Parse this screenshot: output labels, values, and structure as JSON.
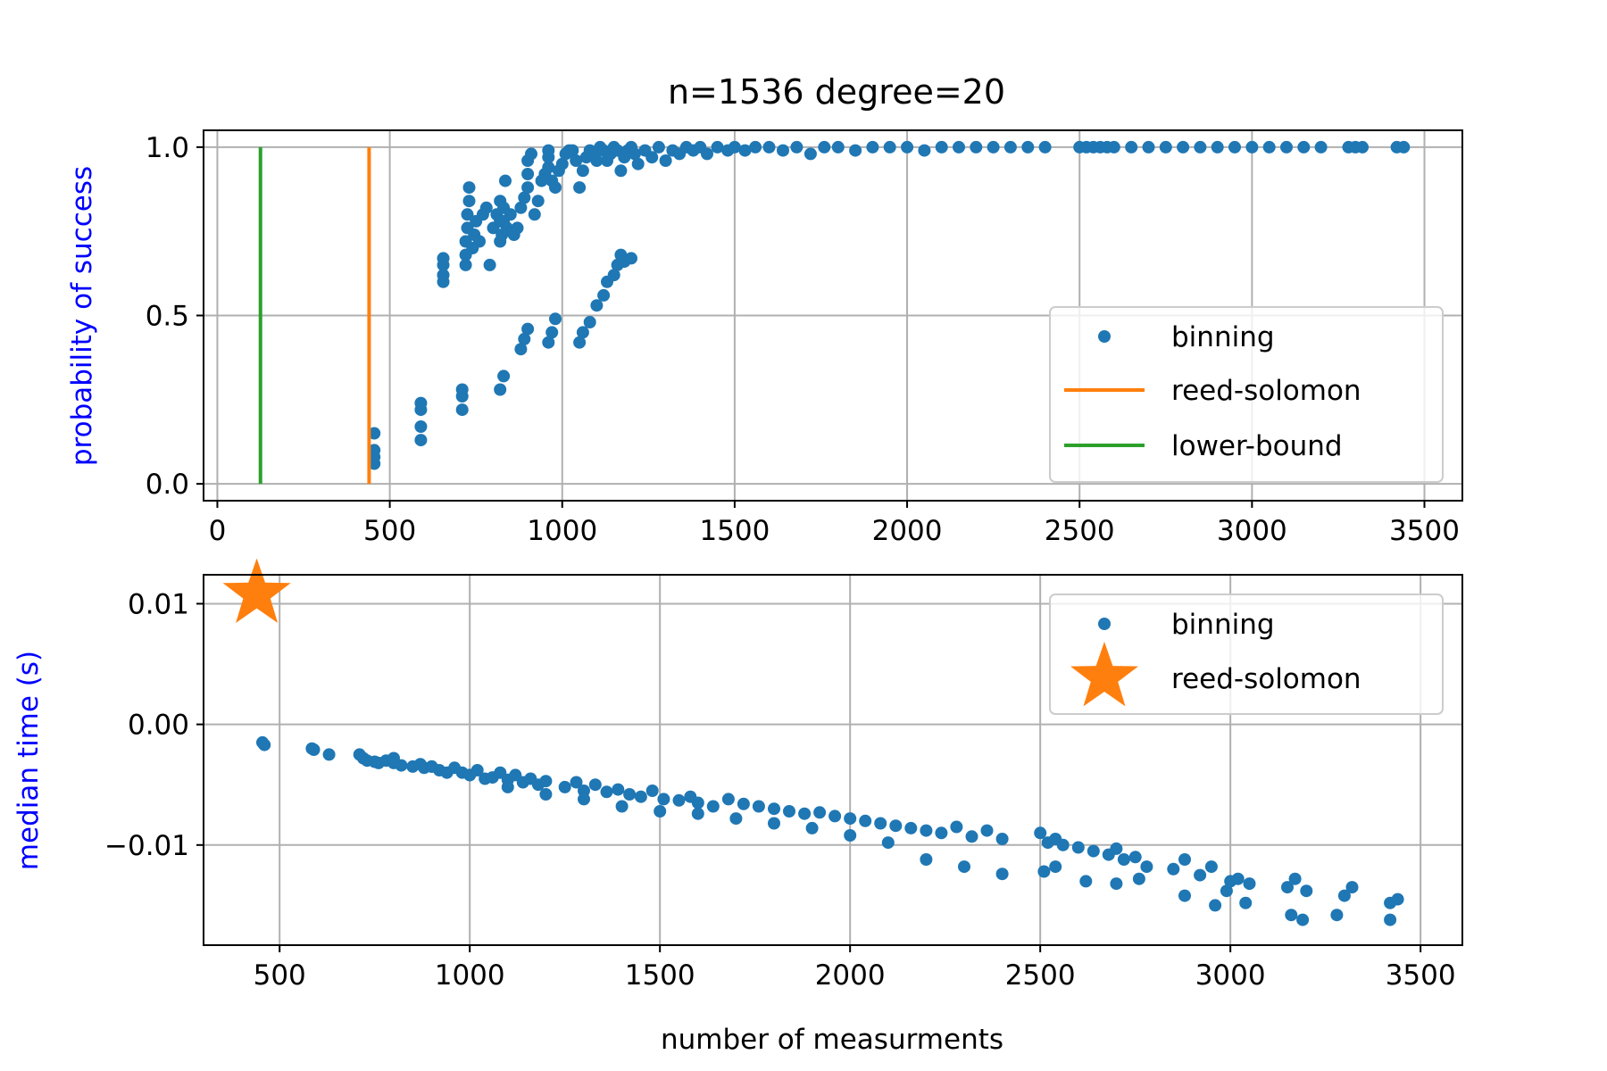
{
  "colors": {
    "binning": "#1f77b4",
    "reed_solomon": "#ff7f0e",
    "lower_bound": "#2ca02c",
    "axis_title": "#0000ff",
    "grid": "#b0b0b0"
  },
  "chart_data": [
    {
      "type": "scatter",
      "title": "n=1536 degree=20",
      "xlabel": "",
      "ylabel": "probability of success",
      "xlim": [
        -40,
        3610
      ],
      "ylim": [
        -0.05,
        1.05
      ],
      "xticks": [
        0,
        500,
        1000,
        1500,
        2000,
        2500,
        3000,
        3500
      ],
      "yticks": [
        0.0,
        0.5,
        1.0
      ],
      "xtick_labels": [
        "0",
        "500",
        "1000",
        "1500",
        "2000",
        "2500",
        "3000",
        "3500"
      ],
      "ytick_labels": [
        "0.0",
        "0.5",
        "1.0"
      ],
      "grid": true,
      "legend_position": "lower-right",
      "series": [
        {
          "name": "binning",
          "kind": "points",
          "marker": "dot",
          "x": [
            455,
            455,
            455,
            455,
            590,
            590,
            590,
            590,
            655,
            655,
            655,
            655,
            710,
            710,
            710,
            720,
            720,
            720,
            725,
            725,
            730,
            730,
            740,
            745,
            750,
            760,
            770,
            780,
            790,
            800,
            810,
            820,
            820,
            820,
            825,
            830,
            830,
            835,
            840,
            850,
            860,
            870,
            880,
            890,
            900,
            900,
            900,
            910,
            920,
            930,
            940,
            950,
            960,
            960,
            960,
            970,
            980,
            990,
            1000,
            1010,
            1020,
            1030,
            1040,
            1050,
            1060,
            1070,
            1080,
            1090,
            1100,
            1110,
            1120,
            1130,
            1140,
            1150,
            1160,
            1170,
            1180,
            1190,
            1200,
            1210,
            1220,
            1240,
            1260,
            1280,
            1300,
            1320,
            1340,
            1360,
            1380,
            1400,
            1420,
            1450,
            1480,
            1500,
            1530,
            1560,
            1600,
            1640,
            1680,
            1720,
            1760,
            1800,
            1850,
            1900,
            1950,
            2000,
            2050,
            2100,
            2150,
            2200,
            2250,
            2300,
            2350,
            2400,
            2500,
            2520,
            2540,
            2560,
            2580,
            2600,
            2650,
            2700,
            2750,
            2800,
            2850,
            2900,
            2950,
            3000,
            3050,
            3100,
            3150,
            3200,
            3280,
            3300,
            3320,
            3420,
            3440,
            820,
            830,
            880,
            890,
            900,
            960,
            970,
            980,
            1050,
            1060,
            1080,
            1100,
            1120,
            1130,
            1150,
            1160,
            1170,
            1180,
            1200
          ],
          "y": [
            0.06,
            0.08,
            0.1,
            0.15,
            0.13,
            0.17,
            0.22,
            0.24,
            0.6,
            0.62,
            0.65,
            0.67,
            0.22,
            0.26,
            0.28,
            0.65,
            0.68,
            0.72,
            0.76,
            0.8,
            0.84,
            0.88,
            0.7,
            0.74,
            0.78,
            0.72,
            0.8,
            0.82,
            0.65,
            0.76,
            0.8,
            0.72,
            0.78,
            0.84,
            0.74,
            0.78,
            0.82,
            0.9,
            0.76,
            0.8,
            0.74,
            0.76,
            0.82,
            0.85,
            0.88,
            0.92,
            0.96,
            0.98,
            0.8,
            0.84,
            0.9,
            0.92,
            0.94,
            0.97,
            0.99,
            0.9,
            0.88,
            0.93,
            0.95,
            0.98,
            0.99,
            0.99,
            0.96,
            0.88,
            0.93,
            0.97,
            0.99,
            0.98,
            0.96,
            1.0,
            0.99,
            0.96,
            0.98,
            1.0,
            0.99,
            0.93,
            0.97,
            0.99,
            1.0,
            0.98,
            0.95,
            0.99,
            0.97,
            1.0,
            0.96,
            0.99,
            0.98,
            1.0,
            0.99,
            1.0,
            0.98,
            1.0,
            0.99,
            1.0,
            0.99,
            1.0,
            1.0,
            0.99,
            1.0,
            0.98,
            1.0,
            1.0,
            0.99,
            1.0,
            1.0,
            1.0,
            0.99,
            1.0,
            1.0,
            1.0,
            1.0,
            1.0,
            1.0,
            1.0,
            1.0,
            1.0,
            1.0,
            1.0,
            1.0,
            1.0,
            1.0,
            1.0,
            1.0,
            1.0,
            1.0,
            1.0,
            1.0,
            1.0,
            1.0,
            1.0,
            1.0,
            1.0,
            1.0,
            1.0,
            1.0,
            1.0,
            1.0,
            0.28,
            0.32,
            0.4,
            0.43,
            0.46,
            0.42,
            0.45,
            0.49,
            0.42,
            0.45,
            0.48,
            0.53,
            0.56,
            0.6,
            0.62,
            0.65,
            0.68,
            0.66,
            0.67
          ]
        },
        {
          "name": "reed-solomon",
          "kind": "vline",
          "x": 440,
          "y_range": [
            0.0,
            1.0
          ]
        },
        {
          "name": "lower-bound",
          "kind": "vline",
          "x": 125,
          "y_range": [
            0.0,
            1.0
          ]
        }
      ]
    },
    {
      "type": "scatter",
      "title": "",
      "xlabel": "number of measurments",
      "ylabel": "median time (s)",
      "xlim": [
        300,
        3610
      ],
      "ylim": [
        -0.0183,
        0.0124
      ],
      "xticks": [
        500,
        1000,
        1500,
        2000,
        2500,
        3000,
        3500
      ],
      "yticks": [
        0.01,
        0.0,
        -0.01
      ],
      "xtick_labels": [
        "500",
        "1000",
        "1500",
        "2000",
        "2500",
        "3000",
        "3500"
      ],
      "ytick_labels": [
        "0.01",
        "0.00",
        "−0.01"
      ],
      "grid": true,
      "legend_position": "upper-right",
      "series": [
        {
          "name": "binning",
          "kind": "points",
          "marker": "dot",
          "x": [
            455,
            460,
            585,
            590,
            630,
            710,
            720,
            730,
            750,
            760,
            780,
            800,
            820,
            850,
            870,
            880,
            900,
            920,
            940,
            960,
            980,
            1000,
            1020,
            1040,
            1060,
            1080,
            1100,
            1120,
            1140,
            1160,
            1180,
            1200,
            1250,
            1280,
            1300,
            1330,
            1360,
            1390,
            1420,
            1450,
            1480,
            1510,
            1550,
            1580,
            1600,
            1640,
            1680,
            1720,
            1760,
            1800,
            1840,
            1880,
            1920,
            1960,
            2000,
            2040,
            2080,
            2120,
            2160,
            2200,
            2240,
            2280,
            2320,
            2360,
            2400,
            2500,
            2520,
            2540,
            2560,
            2600,
            2640,
            2680,
            2700,
            2720,
            2750,
            2780,
            2850,
            2880,
            2920,
            2950,
            3000,
            3020,
            3050,
            3150,
            3170,
            3200,
            3300,
            3320,
            3420,
            3440,
            2510,
            2540,
            2620,
            2700,
            2760,
            2880,
            2960,
            2990,
            3040,
            3160,
            3190,
            3280,
            3420,
            800,
            900,
            1000,
            1100,
            1200,
            1300,
            1400,
            1500,
            1600,
            1700,
            1800,
            1900,
            2000,
            2100,
            2200,
            2300,
            2400
          ],
          "y": [
            -0.0015,
            -0.0017,
            -0.002,
            -0.0021,
            -0.0025,
            -0.0025,
            -0.0028,
            -0.003,
            -0.0031,
            -0.0032,
            -0.003,
            -0.0032,
            -0.0034,
            -0.0035,
            -0.0033,
            -0.0036,
            -0.0035,
            -0.0038,
            -0.004,
            -0.0036,
            -0.004,
            -0.0042,
            -0.0038,
            -0.0045,
            -0.0044,
            -0.004,
            -0.0046,
            -0.0042,
            -0.0048,
            -0.0045,
            -0.005,
            -0.0047,
            -0.0052,
            -0.0048,
            -0.0055,
            -0.005,
            -0.0056,
            -0.0054,
            -0.0058,
            -0.006,
            -0.0055,
            -0.0062,
            -0.0063,
            -0.006,
            -0.0065,
            -0.0068,
            -0.0062,
            -0.0066,
            -0.0068,
            -0.007,
            -0.0072,
            -0.0074,
            -0.0073,
            -0.0076,
            -0.0078,
            -0.008,
            -0.0082,
            -0.0084,
            -0.0086,
            -0.0088,
            -0.009,
            -0.0085,
            -0.0093,
            -0.0088,
            -0.0095,
            -0.009,
            -0.0098,
            -0.0095,
            -0.01,
            -0.0102,
            -0.0105,
            -0.0108,
            -0.0103,
            -0.0112,
            -0.011,
            -0.0118,
            -0.012,
            -0.0112,
            -0.0125,
            -0.0118,
            -0.013,
            -0.0128,
            -0.0132,
            -0.0135,
            -0.0128,
            -0.0138,
            -0.0142,
            -0.0135,
            -0.0148,
            -0.0145,
            -0.0122,
            -0.0118,
            -0.013,
            -0.0132,
            -0.0128,
            -0.0142,
            -0.015,
            -0.0138,
            -0.0148,
            -0.0158,
            -0.0162,
            -0.0158,
            -0.0162,
            -0.0028,
            -0.0035,
            -0.0042,
            -0.0052,
            -0.0058,
            -0.0062,
            -0.0068,
            -0.0072,
            -0.0074,
            -0.0078,
            -0.0082,
            -0.0086,
            -0.0092,
            -0.0098,
            -0.0112,
            -0.0118,
            -0.0124
          ]
        },
        {
          "name": "reed-solomon",
          "kind": "star",
          "x": 440,
          "y": 0.0108
        }
      ]
    }
  ]
}
